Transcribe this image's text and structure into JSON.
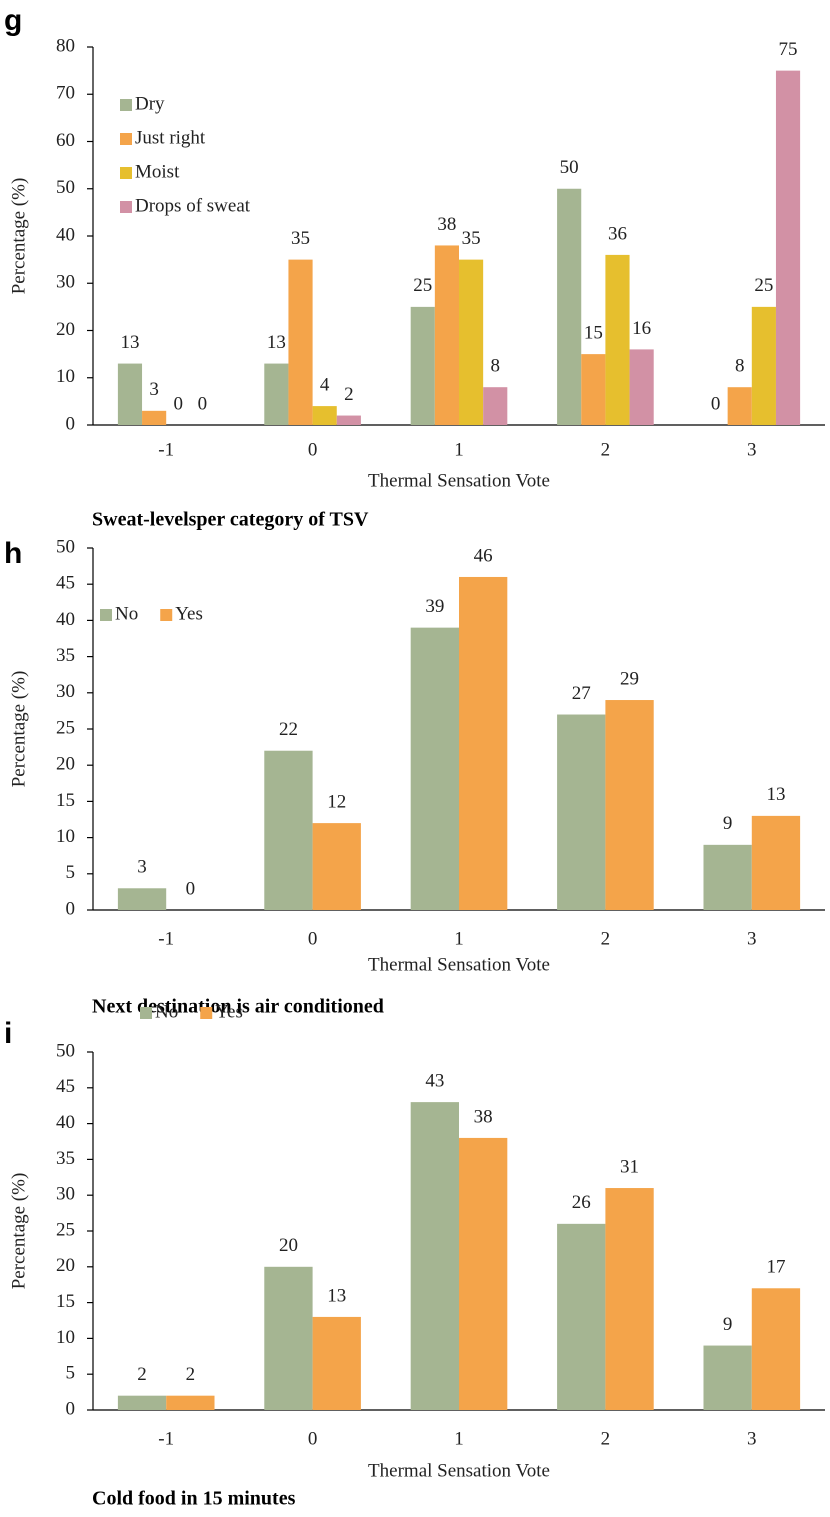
{
  "chart_data": [
    {
      "type": "bar",
      "panel_label": "g",
      "caption": "Sweat-levelsper category of TSV",
      "xlabel": "Thermal Sensation Vote",
      "ylabel": "Percentage (%)",
      "categories": [
        "-1",
        "0",
        "1",
        "2",
        "3"
      ],
      "series": [
        {
          "name": "Dry",
          "color": "#a5b592",
          "values": [
            13,
            13,
            25,
            50,
            0
          ]
        },
        {
          "name": "Just right",
          "color": "#f4a44a",
          "values": [
            3,
            35,
            38,
            15,
            8
          ]
        },
        {
          "name": "Moist",
          "color": "#e6bf2e",
          "values": [
            0,
            4,
            35,
            36,
            25
          ]
        },
        {
          "name": "Drops of sweat",
          "color": "#d291a5",
          "values": [
            0,
            2,
            8,
            16,
            75
          ]
        }
      ],
      "ylim": [
        0,
        80
      ],
      "yticks": [
        0,
        10,
        20,
        30,
        40,
        50,
        60,
        70,
        80
      ],
      "legend": "upper left"
    },
    {
      "type": "bar",
      "panel_label": "h",
      "caption": "Next destination is air conditioned",
      "xlabel": "Thermal Sensation Vote",
      "ylabel": "Percentage (%)",
      "categories": [
        "-1",
        "0",
        "1",
        "2",
        "3"
      ],
      "series": [
        {
          "name": "No",
          "color": "#a5b592",
          "values": [
            3,
            22,
            39,
            27,
            9
          ]
        },
        {
          "name": "Yes",
          "color": "#f4a44a",
          "values": [
            0,
            12,
            46,
            29,
            13
          ]
        }
      ],
      "ylim": [
        0,
        50
      ],
      "yticks": [
        0,
        5,
        10,
        15,
        20,
        25,
        30,
        35,
        40,
        45,
        50
      ],
      "legend": "upper left"
    },
    {
      "type": "bar",
      "panel_label": "i",
      "caption": "Cold food in 15 minutes",
      "xlabel": "Thermal Sensation Vote",
      "ylabel": "Percentage (%)",
      "categories": [
        "-1",
        "0",
        "1",
        "2",
        "3"
      ],
      "series": [
        {
          "name": "No",
          "color": "#a5b592",
          "values": [
            2,
            20,
            43,
            26,
            9
          ]
        },
        {
          "name": "Yes",
          "color": "#f4a44a",
          "values": [
            2,
            13,
            38,
            31,
            17
          ]
        }
      ],
      "ylim": [
        0,
        50
      ],
      "yticks": [
        0,
        5,
        10,
        15,
        20,
        25,
        30,
        35,
        40,
        45,
        50
      ],
      "legend": "upper left"
    }
  ]
}
